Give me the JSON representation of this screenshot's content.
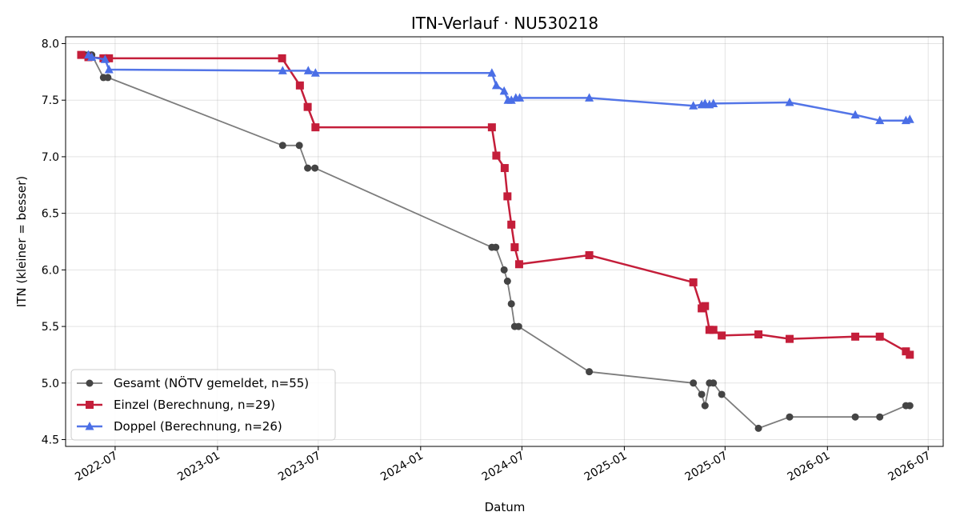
{
  "chart_data": {
    "type": "line",
    "title": "ITN-Verlauf · NU530218",
    "xlabel": "Datum",
    "ylabel": "ITN  (kleiner = besser)",
    "xlim": [
      "2022-04-03",
      "2026-07-28"
    ],
    "ylim": [
      4.44,
      8.06
    ],
    "x_ticks": [
      "2022-07-01",
      "2023-01-01",
      "2023-07-01",
      "2024-01-01",
      "2024-07-01",
      "2025-01-01",
      "2025-07-01",
      "2026-01-01",
      "2026-07-01"
    ],
    "x_tick_labels": [
      "2022-07",
      "2023-01",
      "2023-07",
      "2024-01",
      "2024-07",
      "2025-01",
      "2025-07",
      "2026-01",
      "2026-07"
    ],
    "y_ticks": [
      4.5,
      5.0,
      5.5,
      6.0,
      6.5,
      7.0,
      7.5,
      8.0
    ],
    "y_tick_labels": [
      "4.5",
      "5.0",
      "5.5",
      "6.0",
      "6.5",
      "7.0",
      "7.5",
      "8.0"
    ],
    "grid": true,
    "legend_position": "lower-left",
    "series": [
      {
        "name": "Gesamt (NÖTV gemeldet, n=55)",
        "color": "#444444",
        "marker": "circle",
        "points": [
          [
            "2022-05-01",
            7.9
          ],
          [
            "2022-05-08",
            7.9
          ],
          [
            "2022-05-14",
            7.9
          ],
          [
            "2022-05-20",
            7.9
          ],
          [
            "2022-06-10",
            7.7
          ],
          [
            "2022-06-18",
            7.7
          ],
          [
            "2023-04-28",
            7.1
          ],
          [
            "2023-05-28",
            7.1
          ],
          [
            "2023-06-12",
            6.9
          ],
          [
            "2023-06-25",
            6.9
          ],
          [
            "2024-05-08",
            6.2
          ],
          [
            "2024-05-15",
            6.2
          ],
          [
            "2024-05-30",
            6.0
          ],
          [
            "2024-06-05",
            5.9
          ],
          [
            "2024-06-12",
            5.7
          ],
          [
            "2024-06-18",
            5.5
          ],
          [
            "2024-06-25",
            5.5
          ],
          [
            "2024-10-30",
            5.1
          ],
          [
            "2025-05-05",
            5.0
          ],
          [
            "2025-05-20",
            4.9
          ],
          [
            "2025-05-26",
            4.8
          ],
          [
            "2025-06-03",
            5.0
          ],
          [
            "2025-06-10",
            5.0
          ],
          [
            "2025-06-25",
            4.9
          ],
          [
            "2025-08-30",
            4.6
          ],
          [
            "2025-10-25",
            4.7
          ],
          [
            "2026-02-20",
            4.7
          ],
          [
            "2026-04-05",
            4.7
          ],
          [
            "2026-05-22",
            4.8
          ],
          [
            "2026-05-29",
            4.8
          ]
        ]
      },
      {
        "name": "Einzel (Berechnung, n=29)",
        "color": "#c41e3a",
        "marker": "square",
        "points": [
          [
            "2022-05-01",
            7.9
          ],
          [
            "2022-05-14",
            7.88
          ],
          [
            "2022-06-10",
            7.87
          ],
          [
            "2022-06-20",
            7.87
          ],
          [
            "2023-04-27",
            7.87
          ],
          [
            "2023-05-29",
            7.63
          ],
          [
            "2023-06-12",
            7.44
          ],
          [
            "2023-06-26",
            7.26
          ],
          [
            "2024-05-08",
            7.26
          ],
          [
            "2024-05-16",
            7.01
          ],
          [
            "2024-05-31",
            6.9
          ],
          [
            "2024-06-05",
            6.65
          ],
          [
            "2024-06-12",
            6.4
          ],
          [
            "2024-06-18",
            6.2
          ],
          [
            "2024-06-26",
            6.05
          ],
          [
            "2024-10-30",
            6.13
          ],
          [
            "2025-05-05",
            5.89
          ],
          [
            "2025-05-20",
            5.66
          ],
          [
            "2025-05-26",
            5.68
          ],
          [
            "2025-06-03",
            5.47
          ],
          [
            "2025-06-10",
            5.47
          ],
          [
            "2025-06-25",
            5.42
          ],
          [
            "2025-08-30",
            5.43
          ],
          [
            "2025-10-25",
            5.39
          ],
          [
            "2026-02-20",
            5.41
          ],
          [
            "2026-04-05",
            5.41
          ],
          [
            "2026-05-22",
            5.28
          ],
          [
            "2026-05-29",
            5.25
          ]
        ]
      },
      {
        "name": "Doppel (Berechnung, n=26)",
        "color": "#4a6ee6",
        "marker": "triangle",
        "points": [
          [
            "2022-05-14",
            7.9
          ],
          [
            "2022-05-20",
            7.88
          ],
          [
            "2022-06-13",
            7.86
          ],
          [
            "2022-06-20",
            7.77
          ],
          [
            "2023-04-28",
            7.76
          ],
          [
            "2023-06-13",
            7.76
          ],
          [
            "2023-06-26",
            7.74
          ],
          [
            "2024-05-08",
            7.74
          ],
          [
            "2024-05-16",
            7.63
          ],
          [
            "2024-05-30",
            7.58
          ],
          [
            "2024-06-06",
            7.5
          ],
          [
            "2024-06-12",
            7.5
          ],
          [
            "2024-06-20",
            7.52
          ],
          [
            "2024-06-27",
            7.52
          ],
          [
            "2024-10-30",
            7.52
          ],
          [
            "2025-05-05",
            7.45
          ],
          [
            "2025-05-20",
            7.46
          ],
          [
            "2025-05-26",
            7.47
          ],
          [
            "2025-06-03",
            7.46
          ],
          [
            "2025-06-10",
            7.47
          ],
          [
            "2025-10-25",
            7.48
          ],
          [
            "2026-02-20",
            7.37
          ],
          [
            "2026-04-05",
            7.32
          ],
          [
            "2026-05-22",
            7.32
          ],
          [
            "2026-05-29",
            7.33
          ]
        ]
      }
    ]
  }
}
